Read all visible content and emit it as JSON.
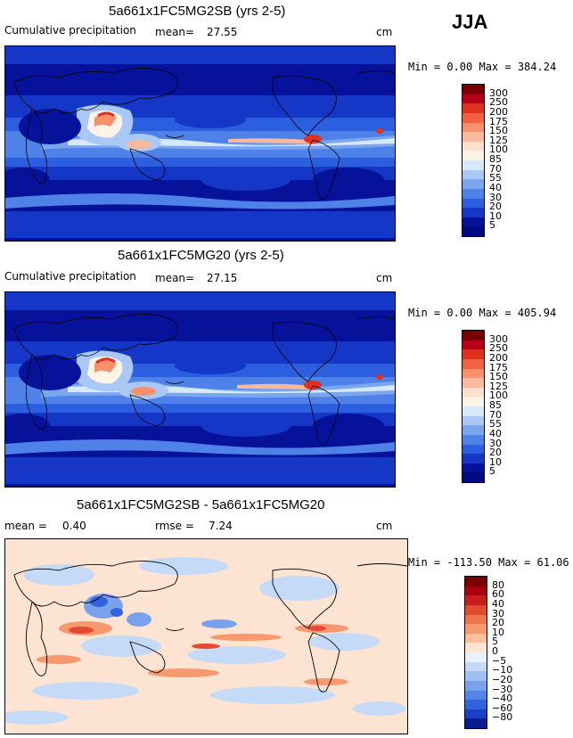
{
  "season": "JJA",
  "panels": [
    {
      "title": "5a661x1FC5MG2SB (yrs 2-5)",
      "variable": "Cumulative precipitation",
      "stat_label": "mean=",
      "stat_value": "27.55",
      "units": "cm",
      "range_text": "Min =    0.00 Max = 384.24",
      "levels": [
        "300",
        "250",
        "200",
        "175",
        "150",
        "125",
        "100",
        "85",
        "70",
        "55",
        "40",
        "30",
        "20",
        "10",
        "5"
      ],
      "colors": [
        "#7a0000",
        "#b8001a",
        "#e0301e",
        "#f2623e",
        "#f8906b",
        "#fbb89a",
        "#fde0cc",
        "#fdf3e6",
        "#d8e8fb",
        "#a9c8f5",
        "#7aa6ee",
        "#4e82e8",
        "#2c5ee0",
        "#1437c8",
        "#06129a",
        "#000a80"
      ]
    },
    {
      "title": "5a661x1FC5MG20 (yrs 2-5)",
      "variable": "Cumulative precipitation",
      "stat_label": "mean=",
      "stat_value": "27.15",
      "units": "cm",
      "range_text": "Min =    0.00 Max = 405.94",
      "levels": [
        "300",
        "250",
        "200",
        "175",
        "150",
        "125",
        "100",
        "85",
        "70",
        "55",
        "40",
        "30",
        "20",
        "10",
        "5"
      ],
      "colors": [
        "#7a0000",
        "#b8001a",
        "#e0301e",
        "#f2623e",
        "#f8906b",
        "#fbb89a",
        "#fde0cc",
        "#fdf3e6",
        "#d8e8fb",
        "#a9c8f5",
        "#7aa6ee",
        "#4e82e8",
        "#2c5ee0",
        "#1437c8",
        "#06129a",
        "#000a80"
      ]
    },
    {
      "title": "5a661x1FC5MG2SB - 5a661x1FC5MG20",
      "stat_label": "mean =",
      "stat_value": "0.40",
      "rmse_label": "rmse =",
      "rmse_value": "7.24",
      "units": "cm",
      "range_text": "Min = -113.50 Max =  61.06",
      "levels": [
        "80",
        "60",
        "40",
        "30",
        "20",
        "10",
        "5",
        "0",
        "−5",
        "−10",
        "−20",
        "−30",
        "−40",
        "−60",
        "−80"
      ],
      "colors": [
        "#7a0000",
        "#a8000e",
        "#c81e1e",
        "#e24a32",
        "#ef7450",
        "#f6996f",
        "#fbbf9e",
        "#fde4d2",
        "#e8f1fd",
        "#c4daf7",
        "#9dbff2",
        "#7aa1ec",
        "#5683e6",
        "#3362de",
        "#1a3fc4",
        "#0a1c8e"
      ]
    }
  ]
}
